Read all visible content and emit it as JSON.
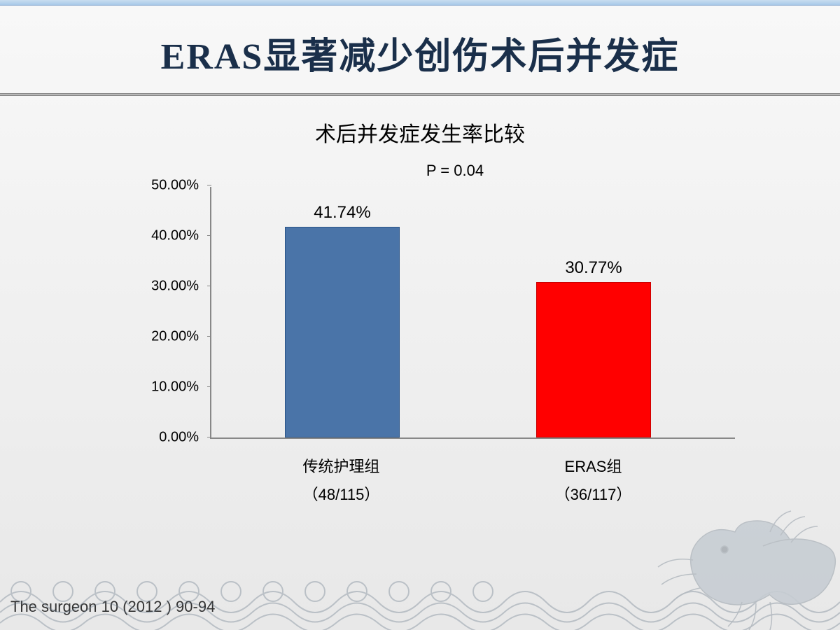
{
  "slide": {
    "main_title": "ERAS显著减少创伤术后并发症",
    "citation": "The surgeon 10 (2012 ) 90-94"
  },
  "chart": {
    "type": "bar",
    "title": "术后并发症发生率比较",
    "p_value": "P = 0.04",
    "ylim": [
      0,
      50
    ],
    "ytick_step": 10,
    "yticks": [
      {
        "value": 0,
        "label": "0.00%"
      },
      {
        "value": 10,
        "label": "10.00%"
      },
      {
        "value": 20,
        "label": "20.00%"
      },
      {
        "value": 30,
        "label": "30.00%"
      },
      {
        "value": 40,
        "label": "40.00%"
      },
      {
        "value": 50,
        "label": "50.00%"
      }
    ],
    "bars": [
      {
        "category_line1": "传统护理组",
        "category_line2": "（48/115）",
        "value": 41.74,
        "value_label": "41.74%",
        "color": "#4a74a8",
        "border_color": "#2a5488",
        "x_center_pct": 25,
        "width_pct": 22
      },
      {
        "category_line1": "ERAS组",
        "category_line2": "（36/117）",
        "value": 30.77,
        "value_label": "30.77%",
        "color": "#ff0000",
        "border_color": "#cc0000",
        "x_center_pct": 73,
        "width_pct": 22
      }
    ],
    "axis_color": "#888888",
    "label_fontsize": 22,
    "title_fontsize": 30,
    "value_label_fontsize": 24,
    "background_color": "transparent"
  }
}
